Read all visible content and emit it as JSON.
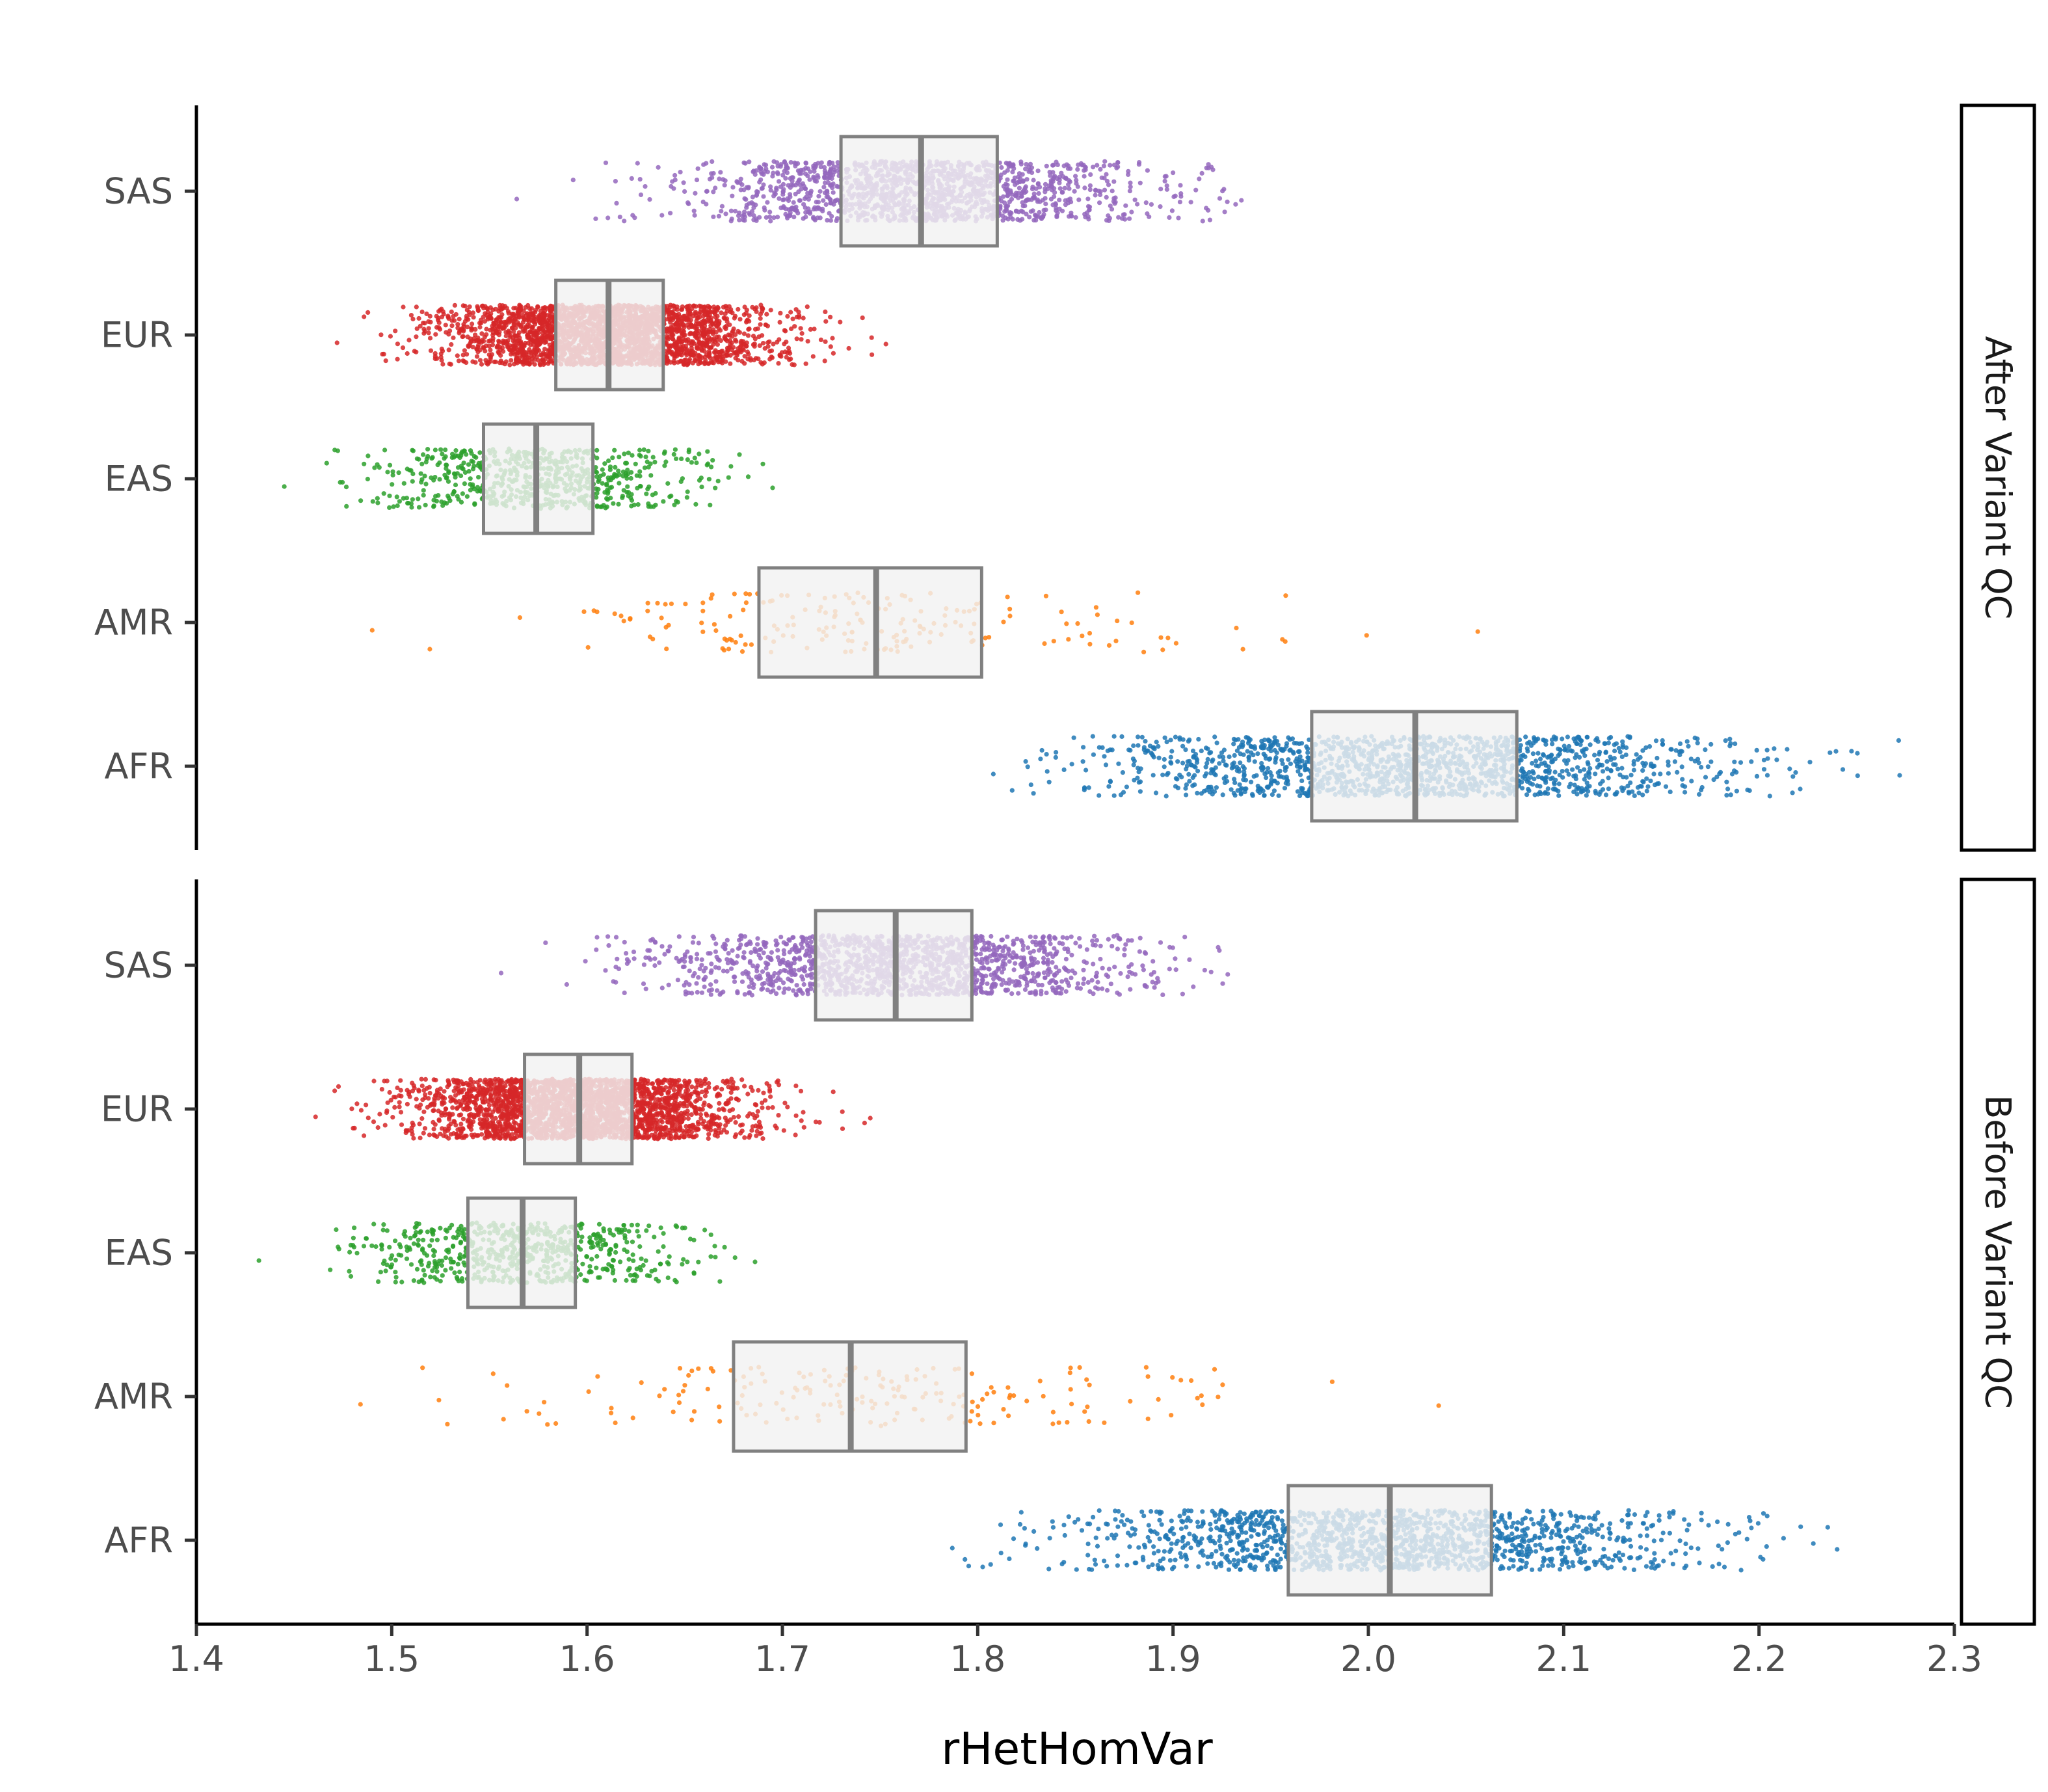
{
  "chart_data": {
    "type": "scatter",
    "subtype": "horizontal jittered strip plot with boxplot overlay, faceted",
    "xlabel": "rHetHomVar",
    "ylabel": "",
    "xlim": [
      1.4,
      2.3
    ],
    "xticks": [
      1.4,
      1.5,
      1.6,
      1.7,
      1.8,
      1.9,
      2.0,
      2.1,
      2.2,
      2.3
    ],
    "xtick_labels": [
      "1.4",
      "1.5",
      "1.6",
      "1.7",
      "1.8",
      "1.9",
      "2.0",
      "2.1",
      "2.2",
      "2.3"
    ],
    "categories": [
      "SAS",
      "EUR",
      "EAS",
      "AMR",
      "AFR"
    ],
    "legend": "none",
    "grid": false,
    "colors": {
      "SAS": "#9467bd",
      "EUR": "#d62728",
      "EAS": "#2ca02c",
      "AMR": "#ff7f0e",
      "AFR": "#1f77b4",
      "box_stroke": "#808080",
      "box_fill": "#f2f2f2"
    },
    "facets": [
      {
        "label": "After Variant QC",
        "groups": [
          {
            "name": "SAS",
            "q1": 1.73,
            "median": 1.771,
            "q3": 1.81,
            "min": 1.564,
            "max": 1.935,
            "density": "high"
          },
          {
            "name": "EUR",
            "q1": 1.584,
            "median": 1.611,
            "q3": 1.639,
            "min": 1.472,
            "max": 1.753,
            "density": "very-high"
          },
          {
            "name": "EAS",
            "q1": 1.547,
            "median": 1.574,
            "q3": 1.603,
            "min": 1.445,
            "max": 1.695,
            "density": "medium"
          },
          {
            "name": "AMR",
            "q1": 1.688,
            "median": 1.748,
            "q3": 1.802,
            "min": 1.49,
            "max": 2.056,
            "density": "low"
          },
          {
            "name": "AFR",
            "q1": 1.971,
            "median": 2.024,
            "q3": 2.076,
            "min": 1.808,
            "max": 2.272,
            "density": "high"
          }
        ]
      },
      {
        "label": "Before Variant QC",
        "groups": [
          {
            "name": "SAS",
            "q1": 1.717,
            "median": 1.758,
            "q3": 1.797,
            "min": 1.556,
            "max": 1.928,
            "density": "high"
          },
          {
            "name": "EUR",
            "q1": 1.568,
            "median": 1.596,
            "q3": 1.623,
            "min": 1.461,
            "max": 1.745,
            "density": "very-high"
          },
          {
            "name": "EAS",
            "q1": 1.539,
            "median": 1.567,
            "q3": 1.594,
            "min": 1.432,
            "max": 1.686,
            "density": "medium"
          },
          {
            "name": "AMR",
            "q1": 1.675,
            "median": 1.735,
            "q3": 1.794,
            "min": 1.484,
            "max": 2.036,
            "density": "low"
          },
          {
            "name": "AFR",
            "q1": 1.959,
            "median": 2.011,
            "q3": 2.063,
            "min": 1.787,
            "max": 2.24,
            "density": "high"
          }
        ]
      }
    ]
  }
}
